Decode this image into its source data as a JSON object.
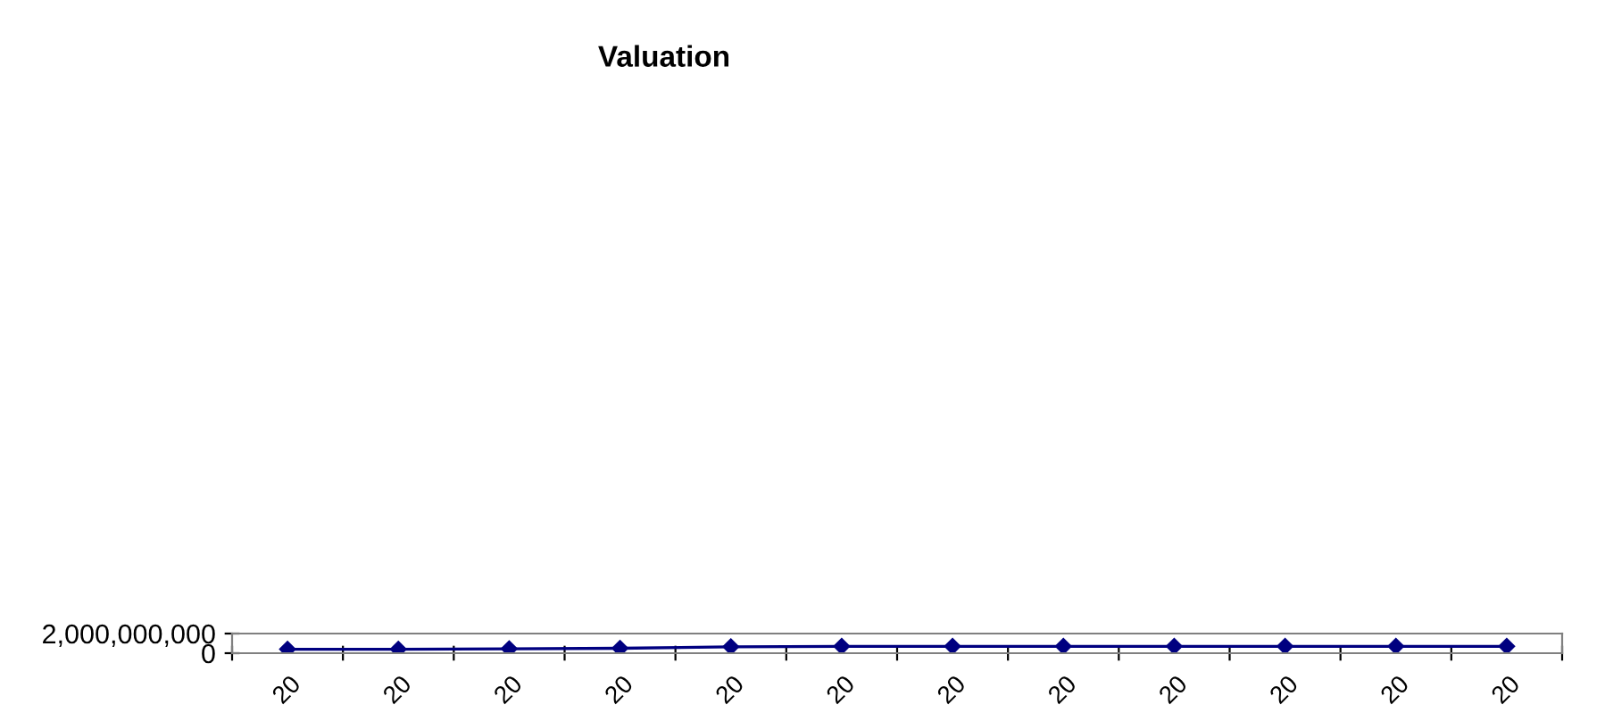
{
  "chart_data": {
    "type": "line",
    "title": "Valuation",
    "categories": [
      "20",
      "20",
      "20",
      "20",
      "20",
      "20",
      "20",
      "20",
      "20",
      "20",
      "20",
      "20"
    ],
    "series": [
      {
        "color": "#000080",
        "values": [
          400000000,
          400000000,
          450000000,
          500000000,
          650000000,
          700000000,
          700000000,
          700000000,
          700000000,
          700000000,
          700000000,
          700000000
        ]
      }
    ],
    "ylim": [
      0,
      2000000000
    ],
    "yticks": [
      {
        "value": 0,
        "label": "0"
      },
      {
        "value": 2000000000,
        "label": "2,000,000,000"
      }
    ],
    "marker": "diamond",
    "grid": false,
    "legend": false
  }
}
